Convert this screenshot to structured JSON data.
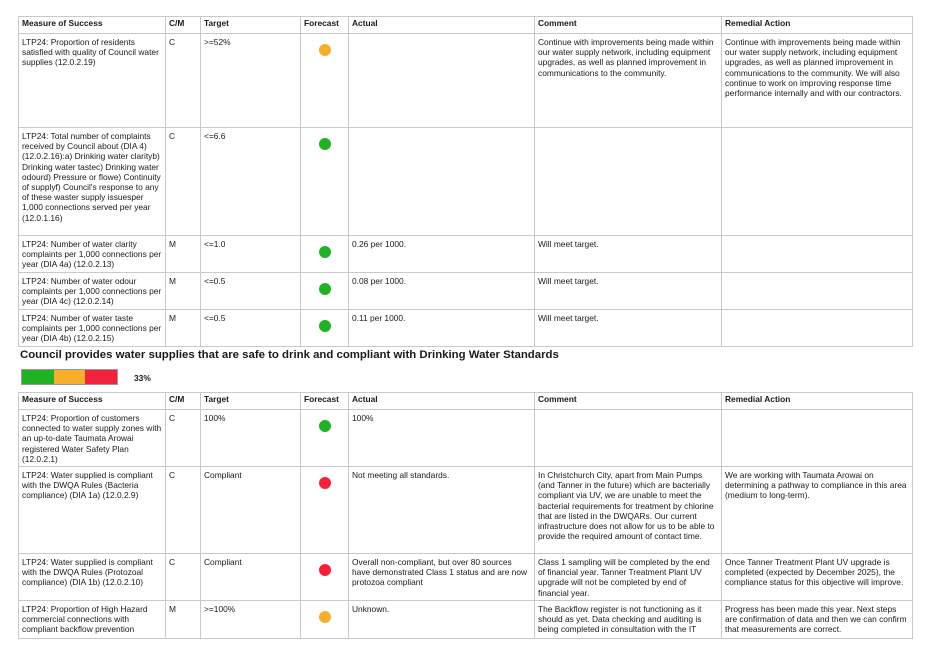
{
  "colors": {
    "green": "#22b024",
    "orange": "#f6ae2d",
    "red": "#f2223c",
    "grid": "#c9c9c9"
  },
  "headers": [
    "Measure of Success",
    "C/M",
    "Target",
    "Forecast",
    "Actual",
    "Comment",
    "Remedial Action"
  ],
  "table1": {
    "rows": [
      {
        "measure": "LTP24: Proportion of residents satisfied with quality of Council water supplies (12.0.2.19)",
        "cm": "C",
        "target": ">=52%",
        "forecast": "orange",
        "actual": "",
        "comment": "Continue with improvements being made within our water supply network, including equipment upgrades, as well as planned improvement in communications to the community.",
        "remedial": "Continue with improvements being made within our water supply network, including equipment upgrades, as well as planned improvement in communications to the community. We will also continue to work on improving response time performance internally and with our contractors."
      },
      {
        "measure": "LTP24: Total number of complaints received by Council about (DIA 4) (12.0.2.16):a) Drinking water clarityb) Drinking water tastec) Drinking water odourd) Pressure or flowe) Continuity of supplyf) Council's response to any of these waster supply issuesper 1,000 connections served per year (12.0.1.16)",
        "cm": "C",
        "target": "<=6.6",
        "forecast": "green",
        "actual": "",
        "comment": "",
        "remedial": ""
      },
      {
        "measure": "LTP24: Number of water clarity complaints per 1,000 connections per year (DIA 4a) (12.0.2.13)",
        "cm": "M",
        "target": "<=1.0",
        "forecast": "green",
        "actual": "0.26 per 1000.",
        "comment": "Will meet target.",
        "remedial": ""
      },
      {
        "measure": "LTP24: Number of water odour complaints per 1,000 connections per year (DIA 4c) (12.0.2.14)",
        "cm": "M",
        "target": "<=0.5",
        "forecast": "green",
        "actual": "0.08 per 1000.",
        "comment": "Will meet target.",
        "remedial": ""
      },
      {
        "measure": "LTP24: Number of water taste complaints per 1,000 connections per year (DIA 4b) (12.0.2.15)",
        "cm": "M",
        "target": "<=0.5",
        "forecast": "green",
        "actual": "0.11 per 1000.",
        "comment": "Will meet target.",
        "remedial": ""
      }
    ]
  },
  "section": {
    "heading": "Council provides water supplies that are safe to drink and compliant with Drinking Water Standards",
    "progress_segments": [
      "green",
      "orange",
      "red"
    ],
    "progress_percent": "33%"
  },
  "table2": {
    "rows": [
      {
        "measure": "LTP24: Proportion of customers connected to water supply zones with an up-to-date Taumata Arowai registered Water Safety Plan (12.0.2.1)",
        "cm": "C",
        "target": "100%",
        "forecast": "green",
        "actual": "100%",
        "comment": "",
        "remedial": ""
      },
      {
        "measure": "LTP24: Water supplied is compliant with the DWQA Rules (Bacteria compliance) (DIA 1a) (12.0.2.9)",
        "cm": "C",
        "target": "Compliant",
        "forecast": "red",
        "actual": "Not meeting all standards.",
        "comment": "In Christchurch City, apart from Main Pumps (and Tanner in the future) which are bacterially compliant via UV, we are unable to meet the bacterial requirements for treatment by chlorine that are listed in the DWQARs. Our current infrastructure does not allow for us to be able to provide the required amount of contact time.",
        "remedial": "We are working with Taumata Arowai on determining a pathway to compliance in this area (medium to long-term)."
      },
      {
        "measure": "LTP24: Water supplied is compliant with the DWQA Rules (Protozoal compliance) (DIA 1b) (12.0.2.10)",
        "cm": "C",
        "target": "Compliant",
        "forecast": "red",
        "actual": "Overall non-compliant, but over 80 sources have demonstrated Class 1 status and are now protozoa compliant",
        "comment": "Class 1 sampling will be completed by the end of financial year. Tanner Treatment Plant UV upgrade will not be completed by end of financial year.",
        "remedial": "Once Tanner Treatment Plant UV upgrade is completed (expected by December 2025), the compliance status for this objective will improve."
      },
      {
        "measure": "LTP24: Proportion of High Hazard commercial connections with compliant backflow prevention",
        "cm": "M",
        "target": ">=100%",
        "forecast": "orange",
        "actual": "Unknown.",
        "comment": "The Backflow register is not functioning as it should as yet. Data checking and auditing is being completed in consultation with the IT",
        "remedial": "Progress has been made this year. Next steps are confirmation of data and then we can confirm that measurements are correct."
      }
    ]
  }
}
